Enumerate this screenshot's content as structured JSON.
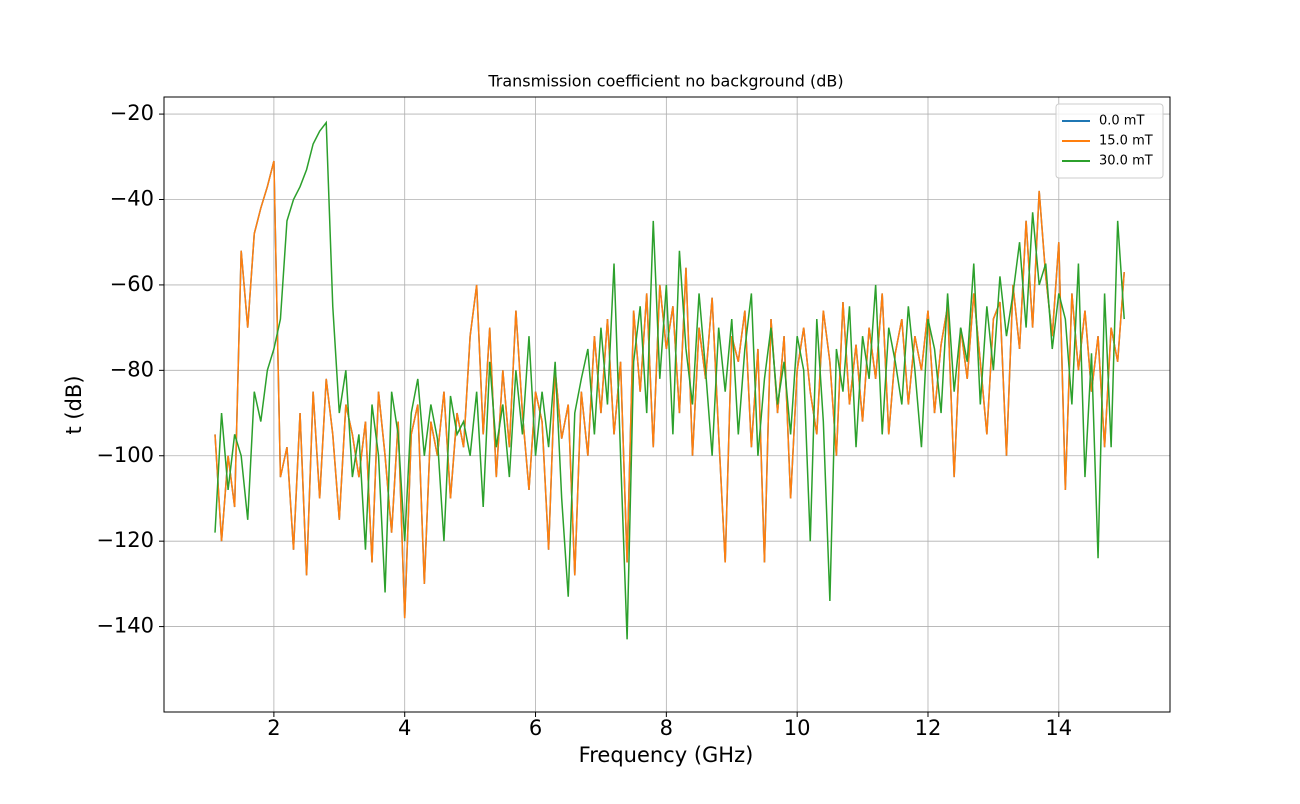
{
  "chart_data": {
    "type": "line",
    "title": "Transmission coefficient no background (dB)",
    "x_label": "Frequency (GHz)",
    "y_label": "t (dB)",
    "x": [
      1.1,
      1.2,
      1.3,
      1.4,
      1.5,
      1.6,
      1.7,
      1.8,
      1.9,
      2.0,
      2.1,
      2.2,
      2.3,
      2.4,
      2.5,
      2.6,
      2.7,
      2.8,
      2.9,
      3.0,
      3.1,
      3.2,
      3.3,
      3.4,
      3.5,
      3.6,
      3.7,
      3.8,
      3.9,
      4.0,
      4.1,
      4.2,
      4.3,
      4.4,
      4.5,
      4.6,
      4.7,
      4.8,
      4.9,
      5.0,
      5.1,
      5.2,
      5.3,
      5.4,
      5.5,
      5.6,
      5.7,
      5.8,
      5.9,
      6.0,
      6.1,
      6.2,
      6.3,
      6.4,
      6.5,
      6.6,
      6.7,
      6.8,
      6.9,
      7.0,
      7.1,
      7.2,
      7.3,
      7.4,
      7.5,
      7.6,
      7.7,
      7.8,
      7.9,
      8.0,
      8.1,
      8.2,
      8.3,
      8.4,
      8.5,
      8.6,
      8.7,
      8.8,
      8.9,
      9.0,
      9.1,
      9.2,
      9.3,
      9.4,
      9.5,
      9.6,
      9.7,
      9.8,
      9.9,
      10.0,
      10.1,
      10.2,
      10.3,
      10.4,
      10.5,
      10.6,
      10.7,
      10.8,
      10.9,
      11.0,
      11.1,
      11.2,
      11.3,
      11.4,
      11.5,
      11.6,
      11.7,
      11.8,
      11.9,
      12.0,
      12.1,
      12.2,
      12.3,
      12.4,
      12.5,
      12.6,
      12.7,
      12.8,
      12.9,
      13.0,
      13.1,
      13.2,
      13.3,
      13.4,
      13.5,
      13.6,
      13.7,
      13.8,
      13.9,
      14.0,
      14.1,
      14.2,
      14.3,
      14.4,
      14.5,
      14.6,
      14.7,
      14.8,
      14.9,
      15.0
    ],
    "series": [
      {
        "name": "0.0 mT",
        "color": "#1f77b4",
        "values": [
          -95,
          -120,
          -100,
          -112,
          -52,
          -70,
          -48,
          -42,
          -37,
          -31,
          -105,
          -98,
          -122,
          -90,
          -128,
          -85,
          -110,
          -82,
          -95,
          -115,
          -88,
          -95,
          -105,
          -92,
          -125,
          -85,
          -100,
          -118,
          -92,
          -138,
          -95,
          -88,
          -130,
          -92,
          -100,
          -85,
          -110,
          -90,
          -98,
          -72,
          -60,
          -95,
          -70,
          -105,
          -80,
          -98,
          -66,
          -90,
          -108,
          -85,
          -92,
          -122,
          -80,
          -96,
          -88,
          -128,
          -85,
          -100,
          -72,
          -90,
          -68,
          -95,
          -78,
          -125,
          -66,
          -85,
          -62,
          -98,
          -60,
          -75,
          -65,
          -90,
          -56,
          -100,
          -70,
          -82,
          -63,
          -95,
          -125,
          -72,
          -78,
          -66,
          -98,
          -75,
          -125,
          -68,
          -90,
          -72,
          -110,
          -80,
          -70,
          -85,
          -95,
          -66,
          -78,
          -100,
          -64,
          -88,
          -74,
          -92,
          -70,
          -82,
          -62,
          -95,
          -76,
          -68,
          -88,
          -72,
          -80,
          -66,
          -90,
          -74,
          -65,
          -105,
          -70,
          -82,
          -62,
          -78,
          -95,
          -68,
          -64,
          -100,
          -60,
          -75,
          -45,
          -70,
          -38,
          -58,
          -72,
          -50,
          -108,
          -62,
          -80,
          -66,
          -85,
          -72,
          -98,
          -70,
          -78,
          -57
        ]
      },
      {
        "name": "15.0 mT",
        "color": "#ff7f0e",
        "values": [
          -95,
          -120,
          -100,
          -112,
          -52,
          -70,
          -48,
          -42,
          -37,
          -31,
          -105,
          -98,
          -122,
          -90,
          -128,
          -85,
          -110,
          -82,
          -95,
          -115,
          -88,
          -95,
          -105,
          -92,
          -125,
          -85,
          -100,
          -118,
          -92,
          -138,
          -95,
          -88,
          -130,
          -92,
          -100,
          -85,
          -110,
          -90,
          -98,
          -72,
          -60,
          -95,
          -70,
          -105,
          -80,
          -98,
          -66,
          -90,
          -108,
          -85,
          -92,
          -122,
          -80,
          -96,
          -88,
          -128,
          -85,
          -100,
          -72,
          -90,
          -68,
          -95,
          -78,
          -125,
          -66,
          -85,
          -62,
          -98,
          -60,
          -75,
          -65,
          -90,
          -56,
          -100,
          -70,
          -82,
          -63,
          -95,
          -125,
          -72,
          -78,
          -66,
          -98,
          -75,
          -125,
          -68,
          -90,
          -72,
          -110,
          -80,
          -70,
          -85,
          -95,
          -66,
          -78,
          -100,
          -64,
          -88,
          -74,
          -92,
          -70,
          -82,
          -62,
          -95,
          -76,
          -68,
          -88,
          -72,
          -80,
          -66,
          -90,
          -74,
          -65,
          -105,
          -70,
          -82,
          -62,
          -78,
          -95,
          -68,
          -64,
          -100,
          -60,
          -75,
          -45,
          -70,
          -38,
          -58,
          -72,
          -50,
          -108,
          -62,
          -80,
          -66,
          -85,
          -72,
          -98,
          -70,
          -78,
          -57
        ]
      },
      {
        "name": "30.0 mT",
        "color": "#2ca02c",
        "values": [
          -118,
          -90,
          -108,
          -95,
          -100,
          -115,
          -85,
          -92,
          -80,
          -75,
          -68,
          -45,
          -40,
          -37,
          -33,
          -27,
          -24,
          -22,
          -65,
          -90,
          -80,
          -105,
          -95,
          -122,
          -88,
          -100,
          -132,
          -85,
          -95,
          -120,
          -90,
          -82,
          -100,
          -88,
          -96,
          -120,
          -86,
          -95,
          -92,
          -100,
          -85,
          -112,
          -78,
          -98,
          -88,
          -105,
          -80,
          -95,
          -72,
          -100,
          -85,
          -98,
          -78,
          -110,
          -133,
          -90,
          -82,
          -75,
          -95,
          -70,
          -88,
          -55,
          -100,
          -143,
          -78,
          -65,
          -90,
          -45,
          -82,
          -60,
          -95,
          -52,
          -75,
          -88,
          -62,
          -80,
          -100,
          -70,
          -85,
          -68,
          -95,
          -75,
          -62,
          -100,
          -82,
          -70,
          -88,
          -78,
          -95,
          -72,
          -80,
          -120,
          -68,
          -92,
          -134,
          -75,
          -85,
          -65,
          -98,
          -72,
          -82,
          -60,
          -95,
          -70,
          -78,
          -88,
          -65,
          -80,
          -98,
          -68,
          -75,
          -90,
          -62,
          -85,
          -70,
          -78,
          -55,
          -88,
          -65,
          -80,
          -58,
          -72,
          -62,
          -50,
          -70,
          -43,
          -60,
          -55,
          -75,
          -62,
          -68,
          -88,
          -55,
          -105,
          -76,
          -124,
          -62,
          -98,
          -45,
          -68
        ]
      }
    ],
    "xlim": [
      0.32,
      15.7
    ],
    "ylim": [
      -160,
      -16
    ],
    "xticks": [
      2,
      4,
      6,
      8,
      10,
      12,
      14
    ],
    "yticks": [
      {
        "value": -20,
        "label": "−20"
      },
      {
        "value": -40,
        "label": "−40"
      },
      {
        "value": -60,
        "label": "−60"
      },
      {
        "value": -80,
        "label": "−80"
      },
      {
        "value": -100,
        "label": "−100"
      },
      {
        "value": -120,
        "label": "−120"
      },
      {
        "value": -140,
        "label": "−140"
      }
    ],
    "grid": true,
    "legend": "upper right"
  }
}
